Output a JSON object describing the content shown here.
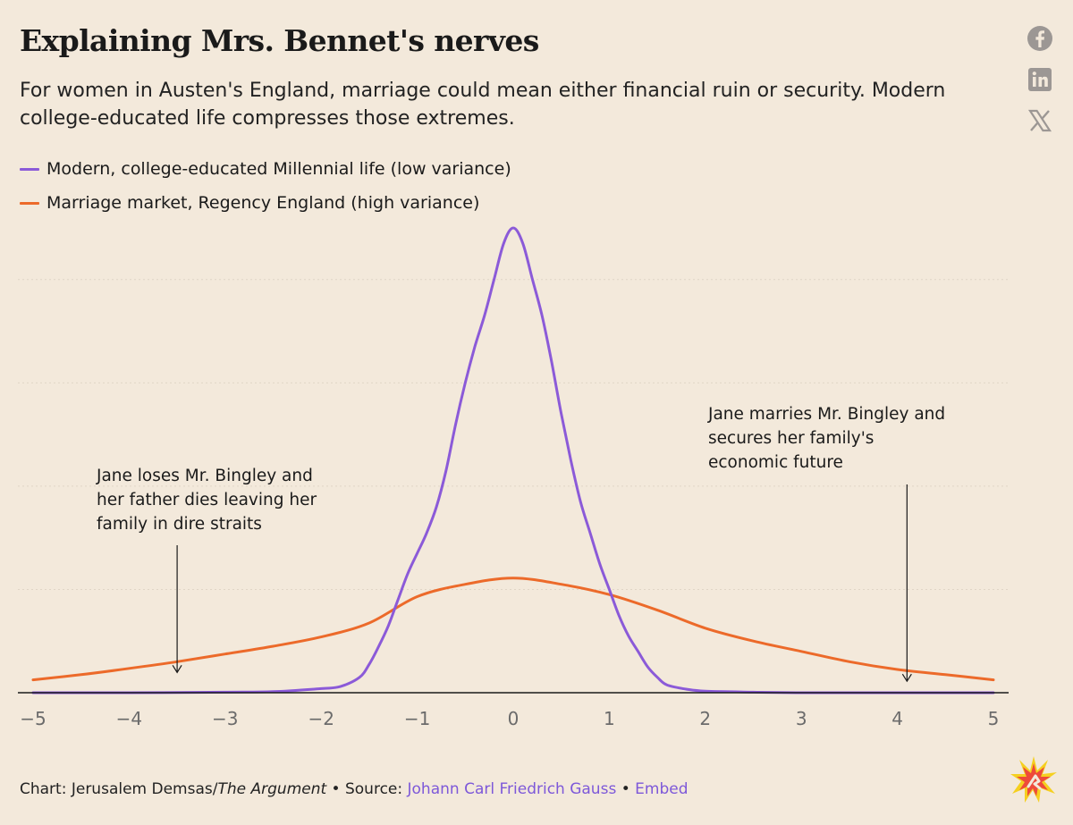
{
  "title": "Explaining Mrs. Bennet's nerves",
  "subtitle": "For women in Austen's England, marriage could mean either financial ruin or security. Modern college-educated life compresses those extremes.",
  "social": [
    "facebook-icon",
    "linkedin-icon",
    "x-icon"
  ],
  "colors": {
    "modern": "#8b5ad8",
    "regency": "#ec6a2a",
    "axis": "#1a1a1a",
    "grid": "#e0d5c6",
    "link": "#7d58d9"
  },
  "chart_data": {
    "type": "line",
    "xlim": [
      -5,
      5
    ],
    "ylim": [
      0,
      0.9
    ],
    "xticks": [
      -5,
      -4,
      -3,
      -2,
      -1,
      0,
      1,
      2,
      3,
      4,
      5
    ],
    "tick_labels": [
      "−5",
      "−4",
      "−3",
      "−2",
      "−1",
      "0",
      "1",
      "2",
      "3",
      "4",
      "5"
    ],
    "grid": true,
    "legend_position": "top-left",
    "series": [
      {
        "name": "Modern, college-educated Millennial life (low variance)",
        "color": "#8b5ad8",
        "x": [
          -5,
          -4,
          -3,
          -2.5,
          -2,
          -1.8,
          -1.6,
          -1.5,
          -1.4,
          -1.3,
          -1.2,
          -1.1,
          -1,
          -0.9,
          -0.8,
          -0.7,
          -0.6,
          -0.5,
          -0.4,
          -0.3,
          -0.2,
          -0.1,
          0,
          0.1,
          0.2,
          0.3,
          0.4,
          0.5,
          0.6,
          0.7,
          0.8,
          0.9,
          1,
          1.1,
          1.2,
          1.3,
          1.4,
          1.5,
          1.6,
          1.8,
          2,
          2.5,
          3,
          4,
          5
        ],
        "y": [
          0,
          0,
          0.001,
          0.002,
          0.008,
          0.012,
          0.03,
          0.055,
          0.09,
          0.13,
          0.18,
          0.23,
          0.27,
          0.31,
          0.36,
          0.43,
          0.52,
          0.6,
          0.67,
          0.73,
          0.8,
          0.87,
          0.9,
          0.87,
          0.8,
          0.73,
          0.64,
          0.54,
          0.45,
          0.37,
          0.31,
          0.25,
          0.2,
          0.15,
          0.11,
          0.08,
          0.05,
          0.03,
          0.015,
          0.007,
          0.003,
          0.001,
          0,
          0,
          0
        ]
      },
      {
        "name": "Marriage market, Regency England (high variance)",
        "color": "#ec6a2a",
        "x": [
          -5,
          -4.5,
          -4,
          -3.5,
          -3,
          -2.5,
          -2,
          -1.5,
          -1,
          -0.5,
          0,
          0.5,
          1,
          1.5,
          2,
          2.5,
          3,
          3.5,
          4,
          4.5,
          5
        ],
        "y": [
          0.025,
          0.035,
          0.047,
          0.06,
          0.075,
          0.09,
          0.108,
          0.135,
          0.186,
          0.21,
          0.222,
          0.21,
          0.19,
          0.16,
          0.125,
          0.1,
          0.08,
          0.06,
          0.045,
          0.035,
          0.025
        ]
      }
    ],
    "annotations": [
      {
        "text_lines": [
          "Jane loses Mr. Bingley and",
          "her father dies leaving her",
          "family in dire straits"
        ],
        "x": -3.5
      },
      {
        "text_lines": [
          "Jane marries Mr. Bingley and",
          "secures her family's",
          "economic future"
        ],
        "x": 4.1
      }
    ]
  },
  "footer": {
    "credit_prefix": "Chart: Jerusalem Demsas/",
    "publication": "The Argument",
    "sep1": " • Source: ",
    "source": "Johann Carl Friedrich Gauss",
    "sep2": " • ",
    "embed": "Embed"
  }
}
